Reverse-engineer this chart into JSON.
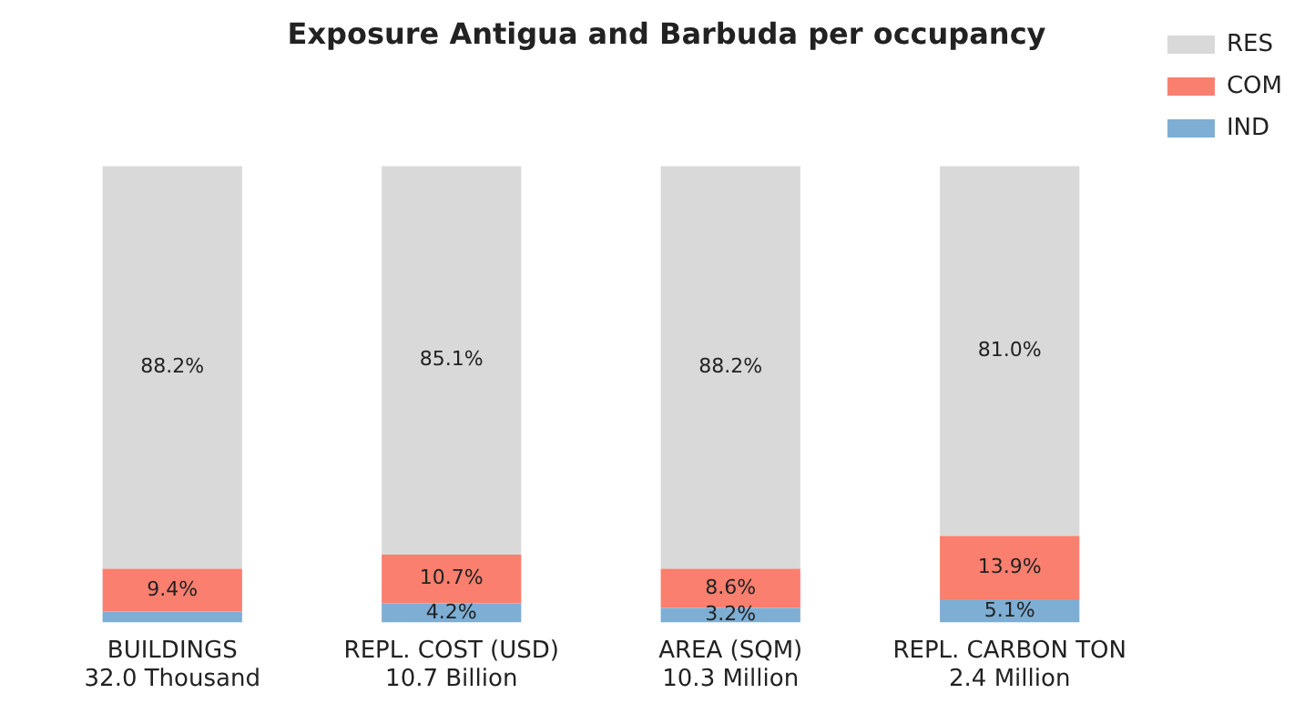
{
  "chart_data": {
    "type": "bar",
    "title": "Exposure Antigua and Barbuda per occupancy",
    "categories": [
      "BUILDINGS\n32.0 Thousand",
      "REPL. COST (USD)\n10.7 Billion",
      "AREA (SQM)\n10.3 Million",
      "REPL. CARBON TON\n2.4 Million"
    ],
    "stacked": true,
    "legend": "top right",
    "grid": false,
    "series": [
      {
        "name": "IND",
        "color": "#7eaed3",
        "values": [
          2.4,
          4.2,
          3.2,
          5.1
        ],
        "value_labels": [
          null,
          "4.2%",
          "3.2%",
          "5.1%"
        ]
      },
      {
        "name": "COM",
        "color": "#fa7f6f",
        "values": [
          9.4,
          10.7,
          8.6,
          13.9
        ],
        "value_labels": [
          "9.4%",
          "10.7%",
          "8.6%",
          "13.9%"
        ]
      },
      {
        "name": "RES",
        "color": "#d9d9d9",
        "values": [
          88.2,
          85.1,
          88.2,
          81.0
        ],
        "value_labels": [
          "88.2%",
          "85.1%",
          "88.2%",
          "81.0%"
        ]
      }
    ]
  }
}
